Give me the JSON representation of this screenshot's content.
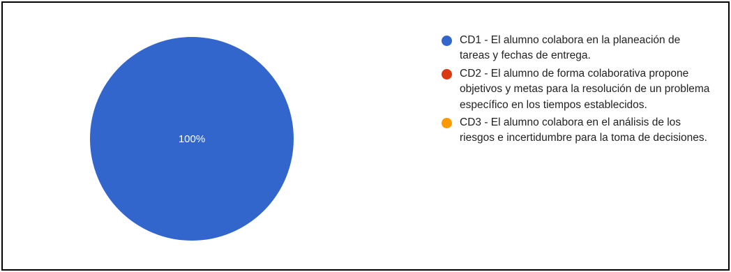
{
  "chart_data": {
    "type": "pie",
    "title": "",
    "slices": [
      {
        "name": "CD1 - El alumno colabora en la planeación de tareas y fechas de entrega.",
        "value": 100,
        "label": "100%",
        "color": "#3366cc"
      },
      {
        "name": "CD2 - El alumno de forma colaborativa propone objetivos y metas para la resolución de un problema específico en los tiempos establecidos.",
        "value": 0,
        "label": "",
        "color": "#dc3912"
      },
      {
        "name": "CD3 - El alumno colabora en el análisis de los riesgos e incertidumbre para la toma de decisiones.",
        "value": 0,
        "label": "",
        "color": "#ff9900"
      }
    ],
    "legend_position": "right"
  }
}
